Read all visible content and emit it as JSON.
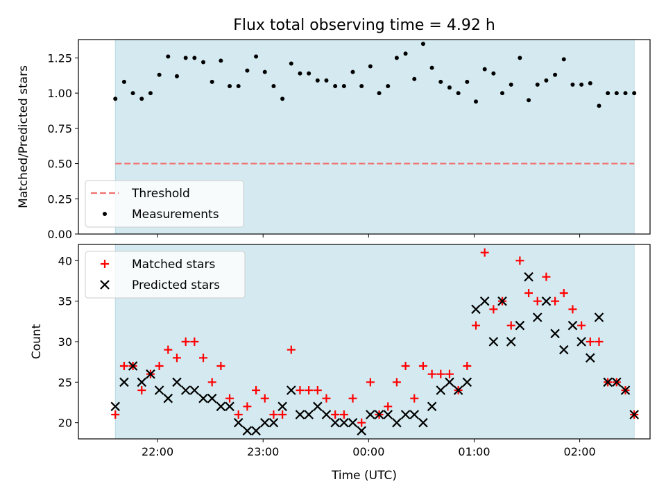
{
  "title": "Flux total observing time = 4.92 h",
  "chart_data": [
    {
      "type": "scatter",
      "panel": "top",
      "ylabel": "Matched/Predicted stars",
      "ylim": [
        0,
        1.38
      ],
      "yticks": [
        "0.00",
        "0.25",
        "0.50",
        "0.75",
        "1.00",
        "1.25"
      ],
      "grid": false,
      "legend_placement": "lower-left",
      "threshold": {
        "name": "Threshold",
        "value": 0.5,
        "color": "#f07070",
        "style": "dashed"
      },
      "series": [
        {
          "name": "Measurements",
          "color": "#000000",
          "marker": "dot",
          "values": [
            0.96,
            1.08,
            1.0,
            0.96,
            1.0,
            1.13,
            1.26,
            1.12,
            1.25,
            1.25,
            1.22,
            1.08,
            1.23,
            1.05,
            1.05,
            1.16,
            1.26,
            1.15,
            1.05,
            0.96,
            1.21,
            1.14,
            1.14,
            1.09,
            1.09,
            1.05,
            1.05,
            1.15,
            1.05,
            1.19,
            1.0,
            1.05,
            1.25,
            1.28,
            1.1,
            1.35,
            1.18,
            1.08,
            1.04,
            1.0,
            1.08,
            0.94,
            1.17,
            1.14,
            1.0,
            1.06,
            1.25,
            0.95,
            1.06,
            1.09,
            1.13,
            1.24,
            1.06,
            1.06,
            1.07,
            0.91,
            1.0,
            1.0,
            1.0,
            1.0
          ]
        }
      ]
    },
    {
      "type": "scatter",
      "panel": "bottom",
      "xlabel": "Time (UTC)",
      "ylabel": "Count",
      "ylim": [
        18,
        42
      ],
      "yticks": [
        "20",
        "25",
        "30",
        "35",
        "40"
      ],
      "grid": false,
      "legend_placement": "upper-left",
      "series": [
        {
          "name": "Matched stars",
          "color": "#ff0000",
          "marker": "plus",
          "values": [
            21,
            27,
            27,
            24,
            26,
            27,
            29,
            28,
            30,
            30,
            28,
            25,
            27,
            23,
            21,
            22,
            24,
            23,
            21,
            21,
            29,
            24,
            24,
            24,
            23,
            21,
            21,
            23,
            20,
            25,
            21,
            22,
            25,
            27,
            23,
            27,
            26,
            26,
            26,
            24,
            27,
            32,
            41,
            34,
            35,
            32,
            40,
            36,
            35,
            38,
            35,
            36,
            34,
            32,
            30,
            30,
            25,
            25,
            24,
            21
          ]
        },
        {
          "name": "Predicted stars",
          "color": "#000000",
          "marker": "x",
          "values": [
            22,
            25,
            27,
            25,
            26,
            24,
            23,
            25,
            24,
            24,
            23,
            23,
            22,
            22,
            20,
            19,
            19,
            20,
            20,
            22,
            24,
            21,
            21,
            22,
            21,
            20,
            20,
            20,
            19,
            21,
            21,
            21,
            20,
            21,
            21,
            20,
            22,
            24,
            25,
            24,
            25,
            34,
            35,
            30,
            35,
            30,
            32,
            38,
            33,
            35,
            31,
            29,
            32,
            30,
            28,
            33,
            25,
            25,
            24,
            21
          ]
        }
      ]
    }
  ],
  "time_axis": {
    "start": "21:36",
    "end": "02:31",
    "ticks": [
      "22:00",
      "23:00",
      "00:00",
      "01:00",
      "02:00"
    ],
    "observing_window_color": "#d4eaf0"
  }
}
